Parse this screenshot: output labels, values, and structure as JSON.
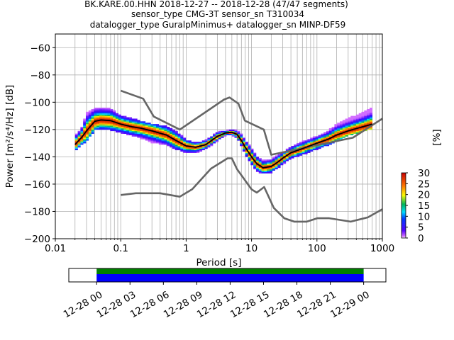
{
  "title_lines": [
    "BK.KARE.00.HHN   2018-12-27 -- 2018-12-28  (47/47 segments)",
    "sensor_type CMG-3T sensor_sn T310034",
    "datalogger_type GuralpMinimus+ datalogger_sn MINP-DF59"
  ],
  "chart_data": {
    "type": "heatmap",
    "title": "BK.KARE.00.HHN   2018-12-27 -- 2018-12-28  (47/47 segments)",
    "xlabel": "Period [s]",
    "ylabel": "Power [m²/s⁴/Hz] [dB]",
    "xscale": "log",
    "xlim": [
      0.01,
      1000
    ],
    "ylim": [
      -200,
      -50
    ],
    "x_ticks": [
      0.01,
      0.1,
      1,
      10,
      100,
      1000
    ],
    "x_tick_labels": [
      "0.01",
      "0.1",
      "1",
      "10",
      "100",
      "1000"
    ],
    "y_ticks": [
      -200,
      -180,
      -160,
      -140,
      -120,
      -100,
      -80,
      -60
    ],
    "y_tick_labels": [
      "−200",
      "−180",
      "−160",
      "−140",
      "−120",
      "−100",
      "−80",
      "−60"
    ],
    "grid": true,
    "colorbar": {
      "label": "[%]",
      "range": [
        0,
        30
      ],
      "ticks": [
        0,
        5,
        10,
        15,
        20,
        25,
        30
      ],
      "tick_labels": [
        "0",
        "5",
        "10",
        "15",
        "20",
        "25",
        "30"
      ],
      "colormap": "pqlx"
    },
    "noise_models": [
      {
        "name": "NHNM",
        "color": "#666666",
        "x": [
          0.1,
          0.22,
          0.32,
          0.8,
          3.8,
          4.6,
          6.3,
          7.9,
          15.4,
          20,
          354.8,
          1000
        ],
        "y": [
          -91.5,
          -97.4,
          -110.5,
          -120.0,
          -98.0,
          -96.5,
          -101.0,
          -113.5,
          -120.0,
          -138.5,
          -126.0,
          -112.0
        ]
      },
      {
        "name": "NLNM",
        "color": "#666666",
        "x": [
          0.1,
          0.17,
          0.4,
          0.8,
          1.24,
          2.4,
          4.3,
          5.0,
          6.0,
          10.0,
          12.0,
          15.6,
          21.9,
          31.6,
          45.0,
          70.0,
          101.0,
          154.0,
          328.0,
          600.0,
          1000.0
        ],
        "y": [
          -168.0,
          -166.7,
          -166.7,
          -169.2,
          -163.7,
          -148.6,
          -141.1,
          -141.1,
          -149.0,
          -163.8,
          -166.2,
          -162.1,
          -177.5,
          -185.0,
          -187.5,
          -187.5,
          -185.0,
          -185.0,
          -187.5,
          -184.4,
          -178.4
        ]
      }
    ],
    "mode_curve": {
      "name": "mode",
      "color": "#000000",
      "x": [
        0.02,
        0.025,
        0.03,
        0.04,
        0.05,
        0.07,
        0.1,
        0.15,
        0.2,
        0.3,
        0.5,
        0.7,
        1.0,
        1.4,
        2.0,
        3.0,
        4.0,
        5.0,
        6.0,
        7.0,
        8.0,
        10.0,
        12.0,
        15.0,
        20.0,
        25.0,
        30.0,
        40.0,
        60.0,
        100.0,
        150.0,
        200.0,
        300.0,
        500.0,
        700.0
      ],
      "y": [
        -131.0,
        -126.0,
        -121.0,
        -114.0,
        -113.0,
        -113.5,
        -116.0,
        -118.0,
        -119.0,
        -121.0,
        -124.0,
        -128.0,
        -132.0,
        -133.0,
        -131.0,
        -125.0,
        -122.5,
        -122.0,
        -123.5,
        -128.0,
        -133.0,
        -140.0,
        -145.0,
        -148.0,
        -147.0,
        -144.0,
        -141.0,
        -137.0,
        -134.0,
        -130.0,
        -127.0,
        -124.0,
        -121.0,
        -118.0,
        -116.0
      ]
    },
    "heatmap_band": {
      "x": [
        0.02,
        0.025,
        0.03,
        0.04,
        0.05,
        0.07,
        0.1,
        0.15,
        0.2,
        0.3,
        0.5,
        0.7,
        1.0,
        1.4,
        2.0,
        3.0,
        4.0,
        5.0,
        6.0,
        7.0,
        8.0,
        10.0,
        12.0,
        15.0,
        20.0,
        25.0,
        30.0,
        40.0,
        60.0,
        100.0,
        150.0,
        200.0,
        300.0,
        500.0,
        700.0
      ],
      "upper": [
        -125.0,
        -119.0,
        -108.0,
        -104.0,
        -104.0,
        -105.0,
        -110.0,
        -112.0,
        -114.0,
        -116.0,
        -118.0,
        -121.0,
        -128.0,
        -130.0,
        -128.0,
        -122.0,
        -121.0,
        -120.0,
        -121.0,
        -124.0,
        -128.0,
        -134.0,
        -140.0,
        -143.0,
        -142.0,
        -139.0,
        -137.0,
        -133.0,
        -129.0,
        -125.0,
        -121.0,
        -116.0,
        -112.0,
        -108.0,
        -104.0
      ],
      "lower": [
        -136.0,
        -131.0,
        -128.0,
        -120.0,
        -119.0,
        -120.0,
        -122.0,
        -124.0,
        -126.0,
        -129.0,
        -131.0,
        -134.0,
        -137.0,
        -137.0,
        -134.0,
        -128.0,
        -124.0,
        -123.5,
        -126.0,
        -132.0,
        -138.0,
        -145.0,
        -150.0,
        -152.0,
        -151.0,
        -148.0,
        -145.0,
        -141.0,
        -138.0,
        -134.0,
        -131.0,
        -128.0,
        -124.0,
        -121.0,
        -119.0
      ]
    },
    "time_coverage": {
      "tick_labels": [
        "12-28 00",
        "12-28 03",
        "12-28 06",
        "12-28 09",
        "12-28 12",
        "12-28 15",
        "12-28 18",
        "12-28 21",
        "12-29 00"
      ],
      "span_hours": [
        -2.5,
        26.0
      ],
      "tick_hours": [
        0,
        3,
        6,
        9,
        12,
        15,
        18,
        21,
        24
      ],
      "data_hours": [
        0,
        24
      ],
      "colors": {
        "green": "#008000",
        "blue": "#0000ff"
      }
    }
  }
}
